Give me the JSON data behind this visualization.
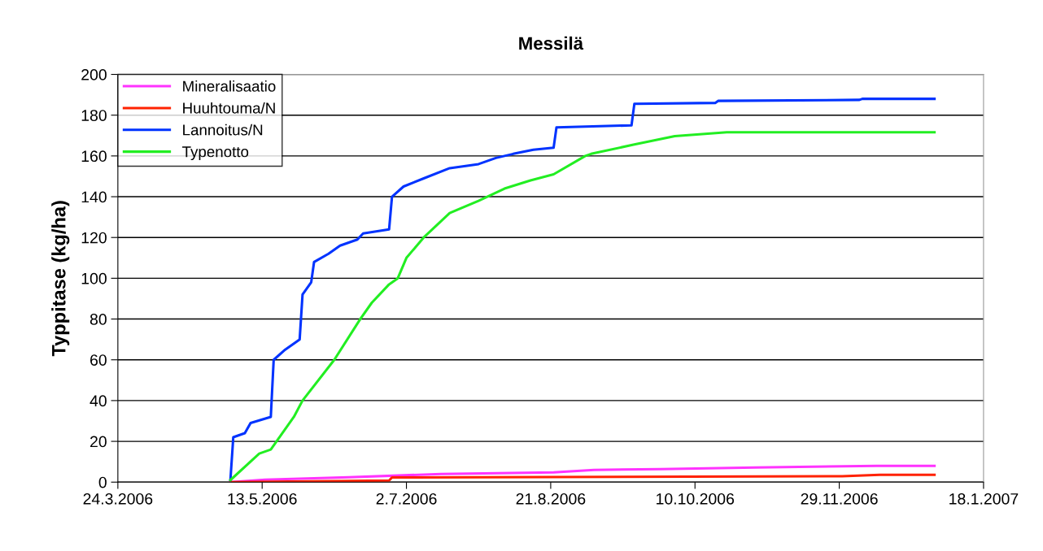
{
  "chart_data": {
    "type": "line",
    "title": "Messilä",
    "ylabel": "Typpitase (kg/ha)",
    "xlim": [
      "2006-03-24",
      "2007-01-18"
    ],
    "xticks": [
      {
        "value": "2006-03-24",
        "label": "24.3.2006"
      },
      {
        "value": "2006-05-13",
        "label": "13.5.2006"
      },
      {
        "value": "2006-07-02",
        "label": "2.7.2006"
      },
      {
        "value": "2006-08-21",
        "label": "21.8.2006"
      },
      {
        "value": "2006-10-10",
        "label": "10.10.2006"
      },
      {
        "value": "2006-11-29",
        "label": "29.11.2006"
      },
      {
        "value": "2007-01-18",
        "label": "18.1.2007"
      }
    ],
    "ylim": [
      0,
      200
    ],
    "yticks": [
      0,
      20,
      40,
      60,
      80,
      100,
      120,
      140,
      160,
      180,
      200
    ],
    "grid": "y",
    "legend": "top left",
    "marker": "none",
    "line_style": "solid",
    "series": [
      {
        "name": "Mineralisaatio",
        "color": "#ff33ff",
        "x": [
          "2006-05-02",
          "2006-05-14",
          "2006-06-12",
          "2006-07-14",
          "2006-08-22",
          "2006-09-05",
          "2006-09-28",
          "2006-10-31",
          "2006-12-12",
          "2007-01-01"
        ],
        "values": [
          0,
          1.2,
          2.4,
          4,
          4.8,
          6,
          6.4,
          7.2,
          8,
          8
        ]
      },
      {
        "name": "Huuhtouma/N",
        "color": "#ff2200",
        "x": [
          "2006-05-02",
          "2006-06-26",
          "2006-06-27",
          "2006-11-30",
          "2006-12-13",
          "2007-01-01"
        ],
        "values": [
          0,
          0.8,
          2.3,
          2.9,
          3.6,
          3.6
        ]
      },
      {
        "name": "Lannoitus/N",
        "color": "#0033ff",
        "x": [
          "2006-05-02",
          "2006-05-03",
          "2006-05-07",
          "2006-05-09",
          "2006-05-16",
          "2006-05-17",
          "2006-05-21",
          "2006-05-26",
          "2006-05-27",
          "2006-05-30",
          "2006-05-31",
          "2006-06-05",
          "2006-06-09",
          "2006-06-15",
          "2006-06-17",
          "2006-06-26",
          "2006-06-27",
          "2006-07-01",
          "2006-07-08",
          "2006-07-17",
          "2006-07-27",
          "2006-08-02",
          "2006-08-08",
          "2006-08-15",
          "2006-08-22",
          "2006-08-23",
          "2006-09-18",
          "2006-09-19",
          "2006-10-17",
          "2006-10-18",
          "2006-12-06",
          "2006-12-07",
          "2007-01-01"
        ],
        "values": [
          1,
          22,
          24,
          29,
          32,
          60,
          65,
          70,
          92,
          98,
          108,
          112,
          116,
          119,
          122,
          124,
          140,
          145,
          149,
          154,
          156,
          159,
          161,
          163,
          164,
          174,
          175,
          185.6,
          186,
          187,
          187.5,
          188,
          188
        ]
      },
      {
        "name": "Typenotto",
        "color": "#22ee22",
        "x": [
          "2006-05-02",
          "2006-05-12",
          "2006-05-16",
          "2006-05-24",
          "2006-05-27",
          "2006-06-07",
          "2006-06-16",
          "2006-06-20",
          "2006-06-26",
          "2006-06-29",
          "2006-07-02",
          "2006-07-08",
          "2006-07-17",
          "2006-07-27",
          "2006-08-05",
          "2006-08-14",
          "2006-08-22",
          "2006-09-02",
          "2006-09-04",
          "2006-09-19",
          "2006-10-03",
          "2006-10-21",
          "2007-01-01"
        ],
        "values": [
          1,
          14,
          16,
          32,
          40,
          60,
          80,
          88,
          97,
          100,
          110,
          120,
          132,
          138,
          144,
          148,
          151,
          160,
          161,
          165.6,
          169.7,
          171.6,
          171.6
        ]
      }
    ]
  }
}
